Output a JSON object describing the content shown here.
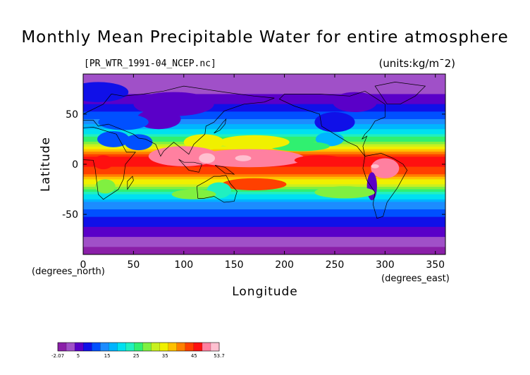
{
  "title": "Monthly Mean Precipitable Water for entire atmosphere",
  "subtitle_left": "[PR_WTR_1991-04_NCEP.nc]",
  "subtitle_right": "(units:kg/m¯2)",
  "chart_data": {
    "type": "heatmap",
    "title": "Monthly Mean Precipitable Water for entire atmosphere",
    "xlabel": "Longitude",
    "ylabel": "Latitude",
    "x_units": "(degrees_east)",
    "y_units": "(degrees_north)",
    "xlim": [
      0,
      360
    ],
    "ylim": [
      -90,
      90
    ],
    "x_ticks": [
      0,
      50,
      100,
      150,
      200,
      250,
      300,
      350
    ],
    "y_ticks": [
      50,
      0,
      -50
    ],
    "colorbar": {
      "min": -2.07,
      "max": 53.7,
      "ticks": [
        -2.07,
        5,
        15,
        25,
        35,
        45,
        53.7
      ],
      "colors": [
        "#8a1fa8",
        "#a050c8",
        "#5a00c8",
        "#1010e8",
        "#0050ff",
        "#1c8cff",
        "#00b4ff",
        "#00e0f0",
        "#20f0c0",
        "#30f070",
        "#80f040",
        "#c8f020",
        "#f0f000",
        "#ffc000",
        "#ff8000",
        "#ff4000",
        "#ff1010",
        "#ff80a0",
        "#ffc0d0"
      ]
    },
    "zonal_profile": {
      "lat": [
        90,
        80,
        70,
        60,
        50,
        40,
        30,
        20,
        10,
        5,
        0,
        -5,
        -10,
        -20,
        -30,
        -40,
        -50,
        -60,
        -70,
        -80,
        -90
      ],
      "value": [
        2,
        3,
        4,
        7,
        11,
        16,
        22,
        32,
        44,
        47,
        45,
        44,
        40,
        31,
        20,
        14,
        10,
        7,
        4,
        1,
        0
      ]
    }
  }
}
